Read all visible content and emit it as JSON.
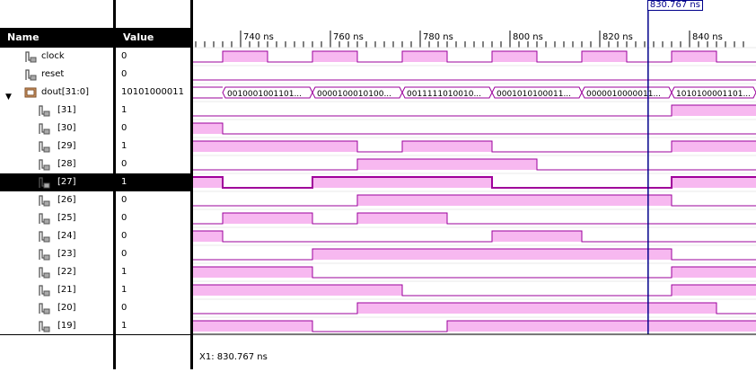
{
  "headers": {
    "name": "Name",
    "value": "Value"
  },
  "signals": [
    {
      "name": "clock",
      "value": "0",
      "icon": "signal-icon"
    },
    {
      "name": "reset",
      "value": "0",
      "icon": "signal-icon"
    },
    {
      "name": "dout[31:0]",
      "value": "10101000011",
      "icon": "bus-icon",
      "expanded": true
    },
    {
      "name": "[31]",
      "value": "1",
      "icon": "signal-icon"
    },
    {
      "name": "[30]",
      "value": "0",
      "icon": "signal-icon"
    },
    {
      "name": "[29]",
      "value": "1",
      "icon": "signal-icon"
    },
    {
      "name": "[28]",
      "value": "0",
      "icon": "signal-icon"
    },
    {
      "name": "[27]",
      "value": "1",
      "icon": "signal-icon",
      "selected": true
    },
    {
      "name": "[26]",
      "value": "0",
      "icon": "signal-icon"
    },
    {
      "name": "[25]",
      "value": "0",
      "icon": "signal-icon"
    },
    {
      "name": "[24]",
      "value": "0",
      "icon": "signal-icon"
    },
    {
      "name": "[23]",
      "value": "0",
      "icon": "signal-icon"
    },
    {
      "name": "[22]",
      "value": "1",
      "icon": "signal-icon"
    },
    {
      "name": "[21]",
      "value": "1",
      "icon": "signal-icon"
    },
    {
      "name": "[20]",
      "value": "0",
      "icon": "signal-icon"
    },
    {
      "name": "[19]",
      "value": "1",
      "icon": "signal-icon"
    }
  ],
  "timeline": {
    "ticks": [
      "740 ns",
      "760 ns",
      "780 ns",
      "800 ns",
      "820 ns",
      "840 ns"
    ],
    "cursor_label": "830.767 ns"
  },
  "waves": {
    "clock": [
      0,
      1,
      0,
      1,
      0,
      1,
      0,
      1,
      0,
      1,
      0,
      1,
      0
    ],
    "reset": [
      0,
      0,
      0,
      0,
      0,
      0,
      0,
      0,
      0,
      0,
      0,
      0,
      0
    ],
    "bus_values": [
      "0010001001101...",
      "0000100010100...",
      "0011111010010...",
      "0001010100011...",
      "0000010000011...",
      "1010100001101..."
    ],
    "bits": [
      [
        0,
        0,
        0,
        0,
        0,
        0,
        0,
        0,
        0,
        0,
        0,
        1,
        1
      ],
      [
        1,
        0,
        0,
        0,
        0,
        0,
        0,
        0,
        0,
        0,
        0,
        0,
        0
      ],
      [
        1,
        1,
        1,
        1,
        0,
        1,
        1,
        0,
        0,
        0,
        0,
        1,
        1
      ],
      [
        0,
        0,
        0,
        0,
        1,
        1,
        1,
        1,
        0,
        0,
        0,
        0,
        0
      ],
      [
        1,
        0,
        0,
        1,
        1,
        1,
        1,
        0,
        0,
        0,
        0,
        1,
        1
      ],
      [
        0,
        0,
        0,
        0,
        1,
        1,
        1,
        1,
        1,
        1,
        1,
        0,
        0
      ],
      [
        0,
        1,
        1,
        0,
        1,
        1,
        0,
        0,
        0,
        0,
        0,
        0,
        0
      ],
      [
        1,
        0,
        0,
        0,
        0,
        0,
        0,
        1,
        1,
        0,
        0,
        0,
        0
      ],
      [
        0,
        0,
        0,
        1,
        1,
        1,
        1,
        1,
        1,
        1,
        1,
        0,
        0
      ],
      [
        1,
        1,
        1,
        0,
        0,
        0,
        0,
        0,
        0,
        0,
        0,
        1,
        1
      ],
      [
        1,
        1,
        1,
        1,
        1,
        0,
        0,
        0,
        0,
        0,
        0,
        1,
        1
      ],
      [
        0,
        0,
        0,
        0,
        1,
        1,
        1,
        1,
        1,
        1,
        1,
        1,
        0
      ],
      [
        1,
        1,
        1,
        0,
        0,
        0,
        1,
        1,
        1,
        1,
        1,
        1,
        1
      ]
    ]
  },
  "status": {
    "cursor": "X1: 830.767 ns"
  },
  "colors": {
    "wave_line": "#9b009b",
    "wave_fill": "#f7b8f0",
    "cursor": "#00008b",
    "selected_line": "#a0009b"
  }
}
